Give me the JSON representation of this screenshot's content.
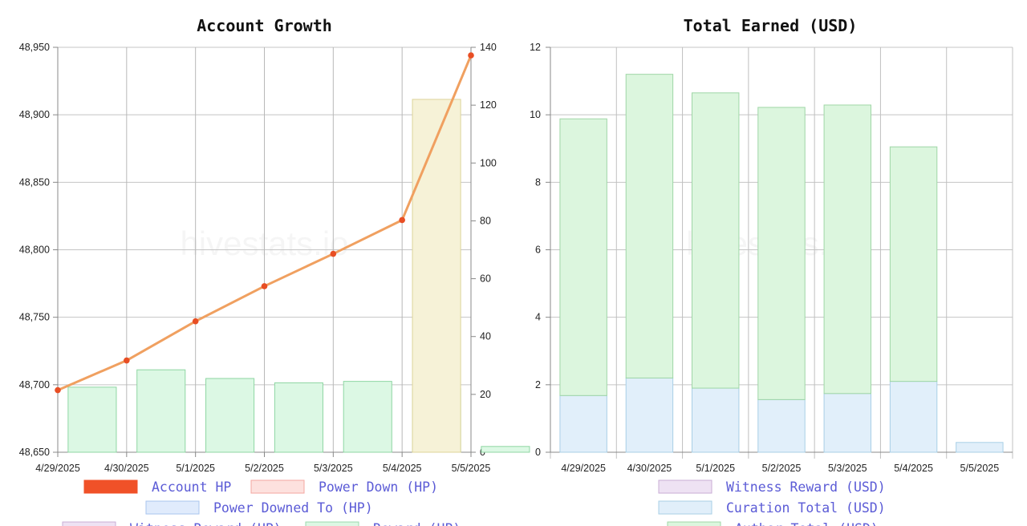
{
  "watermark": "hivestats.io",
  "chart_data": [
    {
      "type": "bar+line",
      "title": "Account Growth",
      "categories": [
        "4/29/2025",
        "4/30/2025",
        "5/1/2025",
        "5/2/2025",
        "5/3/2025",
        "5/4/2025",
        "5/5/2025"
      ],
      "y_left": {
        "min": 48650,
        "max": 48950,
        "ticks": [
          48650,
          48700,
          48750,
          48800,
          48850,
          48900,
          48950
        ]
      },
      "y_right": {
        "min": 0,
        "max": 140,
        "ticks": [
          0,
          20,
          40,
          60,
          80,
          100,
          120,
          140
        ]
      },
      "grid": true,
      "legend_position": "bottom",
      "series": [
        {
          "name": "Account HP",
          "type": "line",
          "axis": "left",
          "color": "#f0a060",
          "marker_color": "#e84e24",
          "values": [
            48696,
            48718,
            48747,
            48773,
            48797,
            48822,
            48944
          ]
        },
        {
          "name": "Power Down (HP)",
          "type": "bar",
          "axis": "right",
          "color": "#fdd9d6",
          "values": [
            0,
            0,
            0,
            0,
            0,
            0,
            0
          ]
        },
        {
          "name": "Power Downed To (HP)",
          "type": "bar",
          "axis": "right",
          "color": "#dbe8fb",
          "values": [
            0,
            0,
            0,
            0,
            0,
            0,
            0
          ]
        },
        {
          "name": "Witness Reward (HP)",
          "type": "bar",
          "axis": "right",
          "color": "#eadcf0",
          "values": [
            0,
            0,
            0,
            0,
            0,
            0,
            0
          ]
        },
        {
          "name": "Reward (HP)",
          "type": "bar",
          "axis": "right",
          "color": "#dcf8e4",
          "border": "#8fd6a3",
          "values": [
            22.5,
            28.5,
            25.5,
            24,
            24.5,
            22,
            2
          ]
        },
        {
          "name": "",
          "type": "bar",
          "axis": "right",
          "color": "#f6f2d7",
          "border": "#ddd49a",
          "legend": false,
          "values": [
            0,
            0,
            0,
            0,
            0,
            122,
            0
          ]
        }
      ],
      "legend": [
        {
          "label": "Account HP",
          "color": "#f05128",
          "border": "#f05128"
        },
        {
          "label": "Power Down (HP)",
          "color": "#fde1de",
          "border": "#f4a7a0"
        },
        {
          "label": "Power Downed To (HP)",
          "color": "#e0ebfc",
          "border": "#a9c4ee"
        },
        {
          "label": "Witness Reward (HP)",
          "color": "#eee2f3",
          "border": "#c9aed6"
        },
        {
          "label": "Reward (HP)",
          "color": "#ddf7e4",
          "border": "#9bd9ac"
        }
      ]
    },
    {
      "type": "bar",
      "stacked": true,
      "title": "Total Earned (USD)",
      "categories": [
        "4/29/2025",
        "4/30/2025",
        "5/1/2025",
        "5/2/2025",
        "5/3/2025",
        "5/4/2025",
        "5/5/2025"
      ],
      "y": {
        "min": 0,
        "max": 12,
        "ticks": [
          0,
          2,
          4,
          6,
          8,
          10,
          12
        ]
      },
      "grid": true,
      "legend_position": "bottom",
      "series": [
        {
          "name": "Witness Reward (USD)",
          "color": "#eee2f3",
          "border": "#c9aed6",
          "values": [
            0,
            0,
            0,
            0,
            0,
            0,
            0
          ]
        },
        {
          "name": "Curation Total (USD)",
          "color": "#e1effa",
          "border": "#a9cfe6",
          "values": [
            1.68,
            2.2,
            1.9,
            1.56,
            1.74,
            2.1,
            0.29
          ]
        },
        {
          "name": "Author Total (USD)",
          "color": "#dcf6de",
          "border": "#9fd6a6",
          "values": [
            8.2,
            9.0,
            8.75,
            8.66,
            8.55,
            6.95,
            0
          ]
        }
      ],
      "legend": [
        {
          "label": "Witness Reward (USD)",
          "color": "#eee2f3",
          "border": "#c9aed6"
        },
        {
          "label": "Curation Total (USD)",
          "color": "#e1effa",
          "border": "#a9cfe6"
        },
        {
          "label": "Author Total (USD)",
          "color": "#dcf6de",
          "border": "#9fd6a6"
        }
      ]
    }
  ]
}
